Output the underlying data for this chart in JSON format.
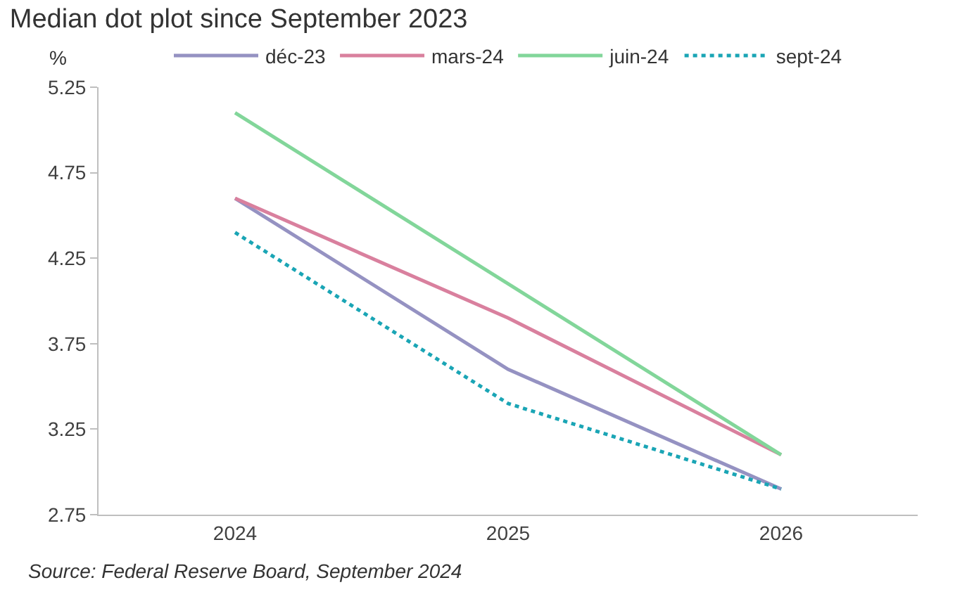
{
  "chart_data": {
    "type": "line",
    "title": "Median dot plot since September 2023",
    "ylabel": "%",
    "categories": [
      "2024",
      "2025",
      "2026"
    ],
    "series": [
      {
        "name": "déc-23",
        "color": "#9592c2",
        "values": [
          4.6,
          3.6,
          2.9
        ]
      },
      {
        "name": "mars-24",
        "color": "#d9809e",
        "values": [
          4.6,
          3.9,
          3.1
        ]
      },
      {
        "name": "juin-24",
        "color": "#82d69a",
        "values": [
          5.1,
          4.1,
          3.1
        ]
      },
      {
        "name": "sept-24",
        "color": "#1aa5b5",
        "values": [
          4.4,
          3.4,
          2.9
        ],
        "line_style": "dotted"
      }
    ],
    "ylim": [
      2.75,
      5.25
    ],
    "yticks": [
      2.75,
      3.25,
      3.75,
      4.25,
      4.75,
      5.25
    ],
    "legend": "top",
    "marker": "none",
    "line_style": "solid",
    "annotations": [
      "Source: Federal Reserve Board, September 2024"
    ]
  }
}
